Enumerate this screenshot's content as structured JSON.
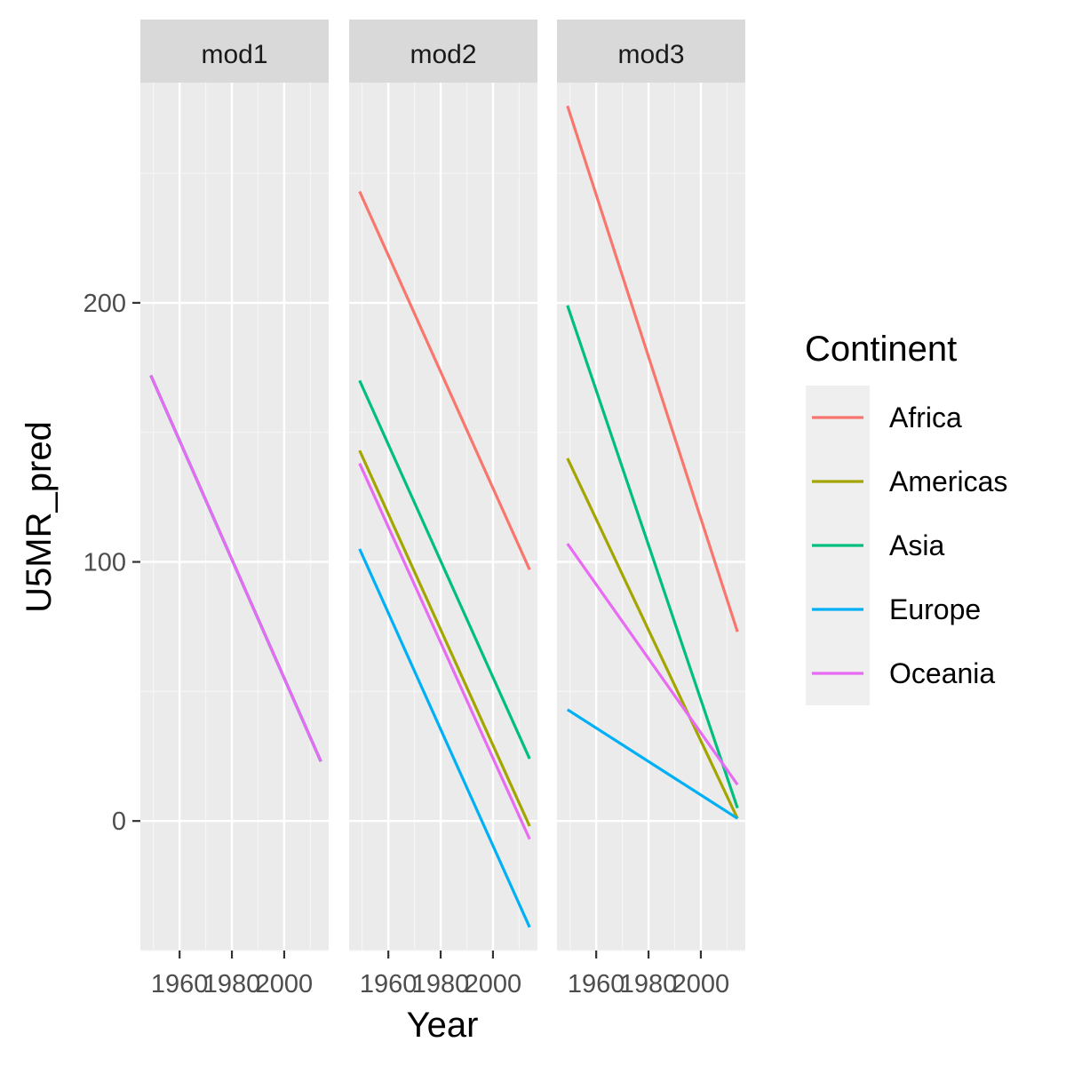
{
  "chart_data": {
    "type": "line",
    "xlabel": "Year",
    "ylabel": "U5MR_pred",
    "xlim": [
      1945,
      2017
    ],
    "ylim": [
      -50,
      285
    ],
    "x_ticks": [
      1960,
      1980,
      2000
    ],
    "y_ticks": [
      0,
      100,
      200
    ],
    "x_tick_labels": [
      "1960",
      "1980",
      "2000"
    ],
    "y_tick_labels": [
      "0",
      "100",
      "200"
    ],
    "grid": true,
    "legend": {
      "title": "Continent",
      "position": "right",
      "entries": [
        "Africa",
        "Americas",
        "Asia",
        "Europe",
        "Oceania"
      ]
    },
    "colors": {
      "Africa": "#F8766D",
      "Americas": "#A3A500",
      "Asia": "#00BF7D",
      "Europe": "#00B0F6",
      "Oceania": "#E76BF3"
    },
    "panels": [
      {
        "name": "mod1",
        "series": [
          {
            "name": "Africa",
            "x": [
              1949,
              2014
            ],
            "y": [
              172,
              23
            ]
          },
          {
            "name": "Americas",
            "x": [
              1949,
              2014
            ],
            "y": [
              172,
              23
            ]
          },
          {
            "name": "Asia",
            "x": [
              1949,
              2014
            ],
            "y": [
              172,
              23
            ]
          },
          {
            "name": "Europe",
            "x": [
              1949,
              2014
            ],
            "y": [
              172,
              23
            ]
          },
          {
            "name": "Oceania",
            "x": [
              1949,
              2014
            ],
            "y": [
              172,
              23
            ]
          }
        ]
      },
      {
        "name": "mod2",
        "series": [
          {
            "name": "Africa",
            "x": [
              1949,
              2014
            ],
            "y": [
              243,
              97
            ]
          },
          {
            "name": "Americas",
            "x": [
              1949,
              2014
            ],
            "y": [
              143,
              -2
            ]
          },
          {
            "name": "Asia",
            "x": [
              1949,
              2014
            ],
            "y": [
              170,
              24
            ]
          },
          {
            "name": "Europe",
            "x": [
              1949,
              2014
            ],
            "y": [
              105,
              -41
            ]
          },
          {
            "name": "Oceania",
            "x": [
              1949,
              2014
            ],
            "y": [
              138,
              -7
            ]
          }
        ]
      },
      {
        "name": "mod3",
        "series": [
          {
            "name": "Africa",
            "x": [
              1949,
              2014
            ],
            "y": [
              276,
              73
            ]
          },
          {
            "name": "Americas",
            "x": [
              1949,
              2014
            ],
            "y": [
              140,
              1
            ]
          },
          {
            "name": "Asia",
            "x": [
              1949,
              2014
            ],
            "y": [
              199,
              5
            ]
          },
          {
            "name": "Europe",
            "x": [
              1949,
              2014
            ],
            "y": [
              43,
              1
            ]
          },
          {
            "name": "Oceania",
            "x": [
              1949,
              2014
            ],
            "y": [
              107,
              14
            ]
          }
        ]
      }
    ]
  }
}
